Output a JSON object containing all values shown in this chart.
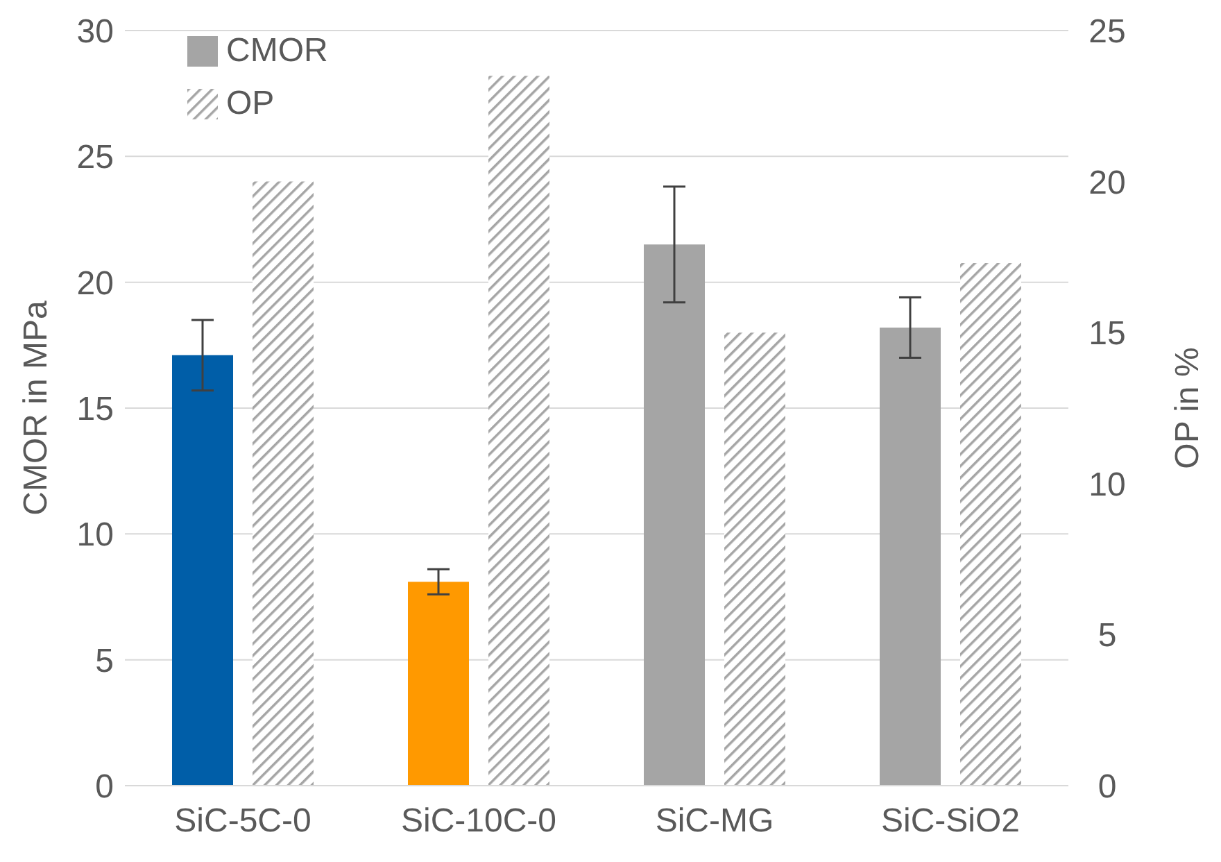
{
  "chart_data": {
    "type": "bar",
    "categories": [
      "SiC-5C-0",
      "SiC-10C-0",
      "SiC-MG",
      "SiC-SiO2"
    ],
    "ylabel": "CMOR in MPa",
    "y2label": "OP in %",
    "series": [
      {
        "name": "CMOR",
        "color": "#a5a5a5",
        "colors": [
          "#005ea8",
          "#ff9900",
          "#a5a5a5",
          "#a5a5a5"
        ],
        "values": [
          17.1,
          8.1,
          21.5,
          18.2
        ],
        "errors": [
          1.4,
          0.5,
          2.3,
          1.2
        ]
      },
      {
        "name": "OP",
        "axis": "y2",
        "color": "#a5a5a5",
        "values": [
          20.0,
          23.5,
          15.0,
          17.3
        ]
      }
    ],
    "ylim": [
      0,
      30
    ],
    "yticks": [
      0,
      5,
      10,
      15,
      20,
      25,
      30
    ],
    "y2lim": [
      0,
      25
    ],
    "y2ticks": [
      0,
      5,
      10,
      15,
      20,
      25
    ],
    "grid": "y",
    "legend": "top left"
  }
}
